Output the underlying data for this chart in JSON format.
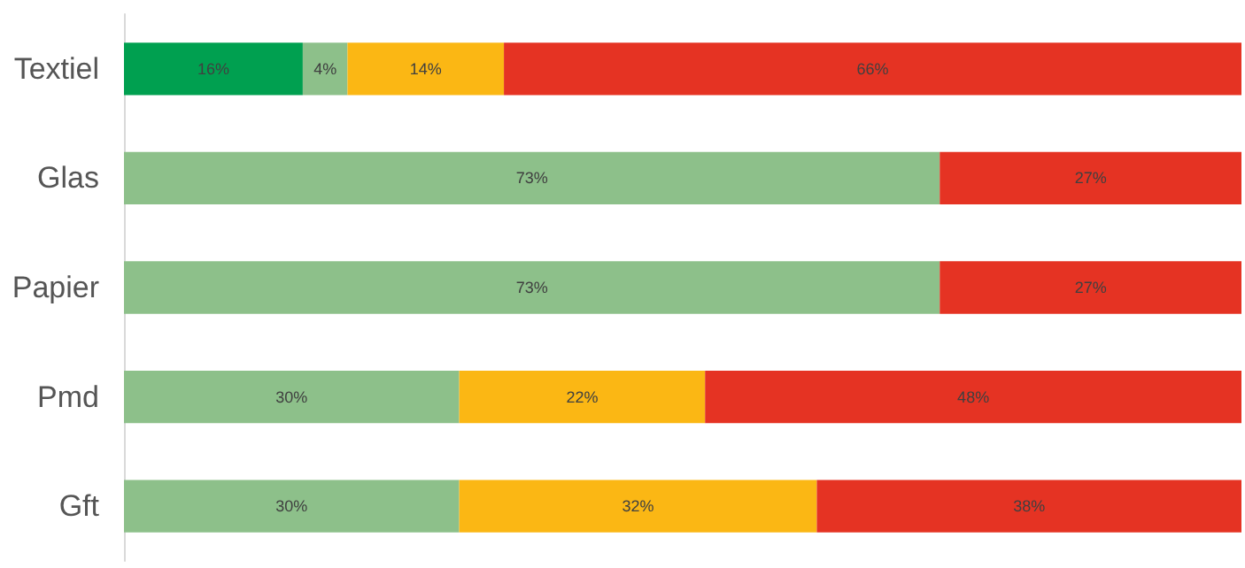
{
  "chart_data": {
    "type": "bar",
    "orientation": "horizontal",
    "stacked": true,
    "categories": [
      "Textiel",
      "Glas",
      "Papier",
      "Pmd",
      "Gft"
    ],
    "xlim": [
      0,
      100
    ],
    "tick_labels": "y",
    "series": [
      {
        "color": "#00a050",
        "values": [
          16,
          null,
          null,
          null,
          null
        ],
        "value_labels": [
          "16%",
          null,
          null,
          null,
          null
        ]
      },
      {
        "color": "#8dc08a",
        "values": [
          4,
          73,
          73,
          30,
          30
        ],
        "value_labels": [
          "4%",
          "73%",
          "73%",
          "30%",
          "30%"
        ]
      },
      {
        "color": "#fbb714",
        "values": [
          14,
          null,
          null,
          22,
          32
        ],
        "value_labels": [
          "14%",
          null,
          null,
          "22%",
          "32%"
        ]
      },
      {
        "color": "#e53323",
        "values": [
          66,
          27,
          27,
          48,
          38
        ],
        "value_labels": [
          "66%",
          "27%",
          "27%",
          "48%",
          "38%"
        ]
      }
    ]
  }
}
